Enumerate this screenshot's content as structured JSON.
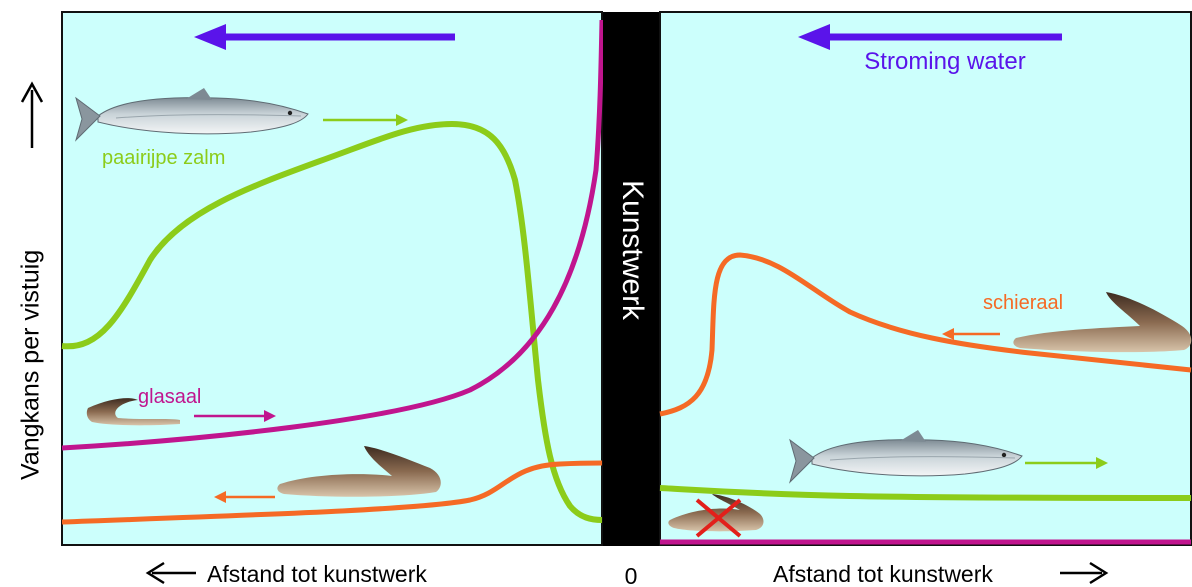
{
  "y_axis_label": "Vangkans per vistuig",
  "x_axis_label_left": "Afstand tot kunstwerk",
  "x_axis_label_right": "Afstand tot kunstwerk",
  "x_origin_label": "0",
  "barrier_label": "Kunstwerk",
  "flow_label": "Stroming water",
  "species": {
    "salmon": "paairijpe zalm",
    "glass_eel": "glasaal",
    "silver_eel": "schieraal"
  },
  "colors": {
    "panel_bg": "#ccfffc",
    "barrier": "#000000",
    "flow_arrow": "#5a14ea",
    "salmon": "#8ccc1a",
    "glass_eel": "#c0158e",
    "silver_eel": "#f56a25",
    "cross": "#e2201b"
  },
  "icons": {
    "left_arrow": "arrow-left-icon",
    "right_arrow": "arrow-right-icon",
    "up_arrow": "arrow-up-icon",
    "salmon": "salmon-icon",
    "eel": "eel-icon",
    "cross": "cross-icon"
  }
}
